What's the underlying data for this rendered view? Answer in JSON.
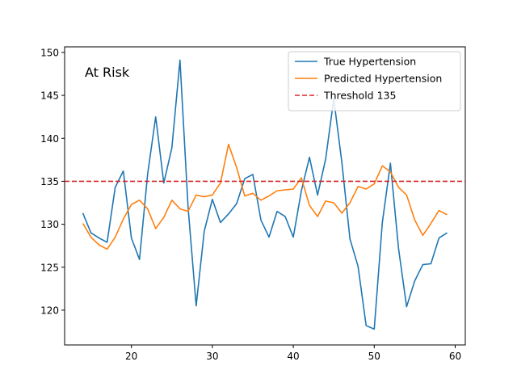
{
  "chart_data": {
    "type": "line",
    "title": "",
    "xlabel": "",
    "ylabel": "",
    "annotation": "At Risk",
    "xlim": [
      11.75,
      61.25
    ],
    "ylim": [
      115.95,
      150.65
    ],
    "xticks": [
      20,
      30,
      40,
      50,
      60
    ],
    "yticks": [
      120,
      125,
      130,
      135,
      140,
      145,
      150
    ],
    "legend_position": "upper right",
    "grid": false,
    "x": [
      14,
      15,
      16,
      17,
      18,
      19,
      20,
      21,
      22,
      23,
      24,
      25,
      26,
      27,
      28,
      29,
      30,
      31,
      32,
      33,
      34,
      35,
      36,
      37,
      38,
      39,
      40,
      41,
      42,
      43,
      44,
      45,
      46,
      47,
      48,
      49,
      50,
      51,
      52,
      53,
      54,
      55,
      56,
      57,
      58,
      59
    ],
    "series": [
      {
        "name": "True Hypertension",
        "color": "#1f77b4",
        "style": "solid",
        "values": [
          131.3,
          129.0,
          128.4,
          127.9,
          134.3,
          136.2,
          128.4,
          125.9,
          135.8,
          142.5,
          134.8,
          138.9,
          149.1,
          132.0,
          120.5,
          129.2,
          132.9,
          130.2,
          131.2,
          132.4,
          135.3,
          135.8,
          130.5,
          128.5,
          131.5,
          130.9,
          128.5,
          133.9,
          137.8,
          133.4,
          137.6,
          144.6,
          137.2,
          128.3,
          125.1,
          118.2,
          117.8,
          130.2,
          137.1,
          127.2,
          120.4,
          123.4,
          125.3,
          125.4,
          128.4,
          129.0
        ]
      },
      {
        "name": "Predicted Hypertension",
        "color": "#ff7f0e",
        "style": "solid",
        "values": [
          130.1,
          128.5,
          127.6,
          127.1,
          128.5,
          130.6,
          132.3,
          132.8,
          131.8,
          129.5,
          130.8,
          132.8,
          131.8,
          131.5,
          133.4,
          133.2,
          133.4,
          134.8,
          139.3,
          136.6,
          133.3,
          133.6,
          132.8,
          133.3,
          133.9,
          134.0,
          134.1,
          135.4,
          132.2,
          130.9,
          132.7,
          132.5,
          131.3,
          132.5,
          134.4,
          134.1,
          134.7,
          136.8,
          136.1,
          134.3,
          133.4,
          130.5,
          128.7,
          130.1,
          131.6,
          131.1
        ]
      },
      {
        "name": "Threshold 135",
        "color": "#d62728",
        "style": "dashed",
        "constant": 135
      }
    ]
  }
}
